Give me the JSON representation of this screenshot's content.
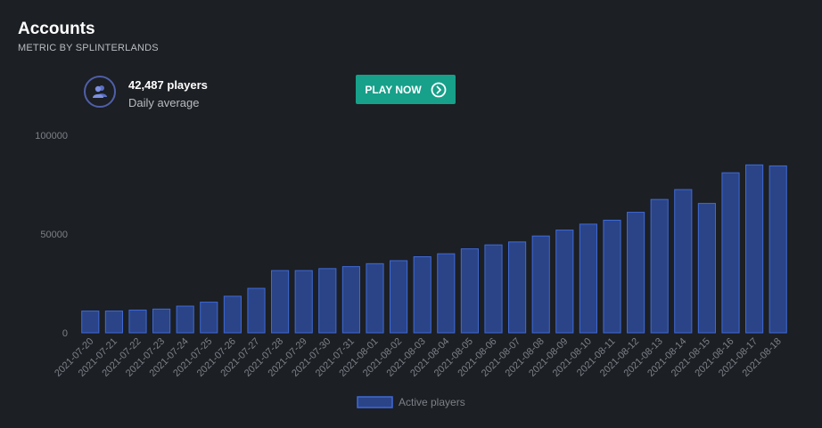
{
  "header": {
    "title": "Accounts",
    "subtitle": "METRIC BY SPLINTERLANDS"
  },
  "stat": {
    "icon": "users-icon",
    "value": "42,487 players",
    "label": "Daily average"
  },
  "cta": {
    "label": "PLAY NOW",
    "icon": "chevron-right-circle-icon"
  },
  "colors": {
    "bar_fill": "#2a4487",
    "bar_stroke": "#3f6ad8",
    "axis_text": "#7d8088",
    "button": "#17a08a"
  },
  "chart_data": {
    "type": "bar",
    "categories": [
      "2021-07-20",
      "2021-07-21",
      "2021-07-22",
      "2021-07-23",
      "2021-07-24",
      "2021-07-25",
      "2021-07-26",
      "2021-07-27",
      "2021-07-28",
      "2021-07-29",
      "2021-07-30",
      "2021-07-31",
      "2021-08-01",
      "2021-08-02",
      "2021-08-03",
      "2021-08-04",
      "2021-08-05",
      "2021-08-06",
      "2021-08-07",
      "2021-08-08",
      "2021-08-09",
      "2021-08-10",
      "2021-08-11",
      "2021-08-12",
      "2021-08-13",
      "2021-08-14",
      "2021-08-15",
      "2021-08-16",
      "2021-08-17",
      "2021-08-18"
    ],
    "series": [
      {
        "name": "Active players",
        "values": [
          11000,
          11000,
          11500,
          12000,
          13500,
          15500,
          18500,
          22500,
          31500,
          31500,
          32500,
          33500,
          35000,
          36500,
          38500,
          40000,
          42500,
          44500,
          46000,
          49000,
          52000,
          55000,
          57000,
          61000,
          67500,
          72500,
          65500,
          81000,
          85000,
          84500
        ]
      }
    ],
    "yticks": [
      "0",
      "50000",
      "100000"
    ],
    "ylim": [
      0,
      100000
    ],
    "legend": "bottom-center",
    "title": "",
    "xlabel": "",
    "ylabel": ""
  }
}
